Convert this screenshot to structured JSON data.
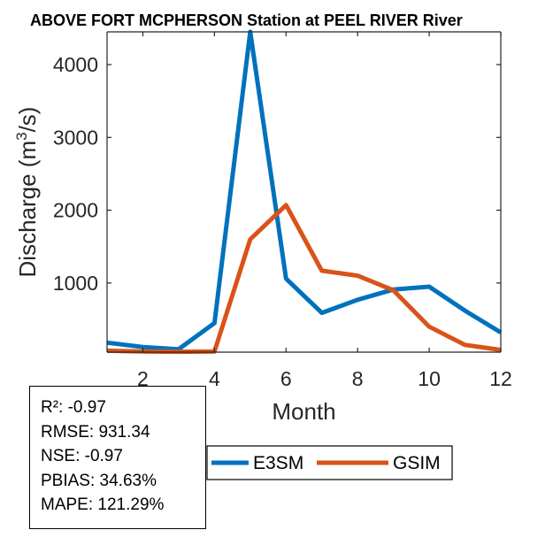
{
  "chart_data": {
    "type": "line",
    "title": "ABOVE FORT MCPHERSON  Station at  PEEL RIVER  River",
    "xlabel": "Month",
    "ylabel_prefix": "Discharge (m",
    "ylabel_sup": "3",
    "ylabel_suffix": "/s)",
    "xlim": [
      1,
      12
    ],
    "ylim": [
      50,
      4450
    ],
    "xticks": [
      2,
      4,
      6,
      8,
      10,
      12
    ],
    "yticks": [
      1000,
      2000,
      3000,
      4000
    ],
    "x": [
      1,
      2,
      3,
      4,
      5,
      6,
      7,
      8,
      9,
      10,
      11,
      12
    ],
    "series": [
      {
        "name": "E3SM",
        "color": "#0072BD",
        "values": [
          180,
          120,
          90,
          450,
          4450,
          1060,
          590,
          770,
          910,
          950,
          620,
          320
        ]
      },
      {
        "name": "GSIM",
        "color": "#D95319",
        "values": [
          70,
          60,
          55,
          60,
          1600,
          2070,
          1170,
          1100,
          900,
          400,
          150,
          80
        ]
      }
    ]
  },
  "stats": {
    "r2": "R²: -0.97",
    "rmse": "RMSE: 931.34",
    "nse": "NSE: -0.97",
    "pbias": "PBIAS: 34.63%",
    "mape": "MAPE: 121.29%"
  }
}
